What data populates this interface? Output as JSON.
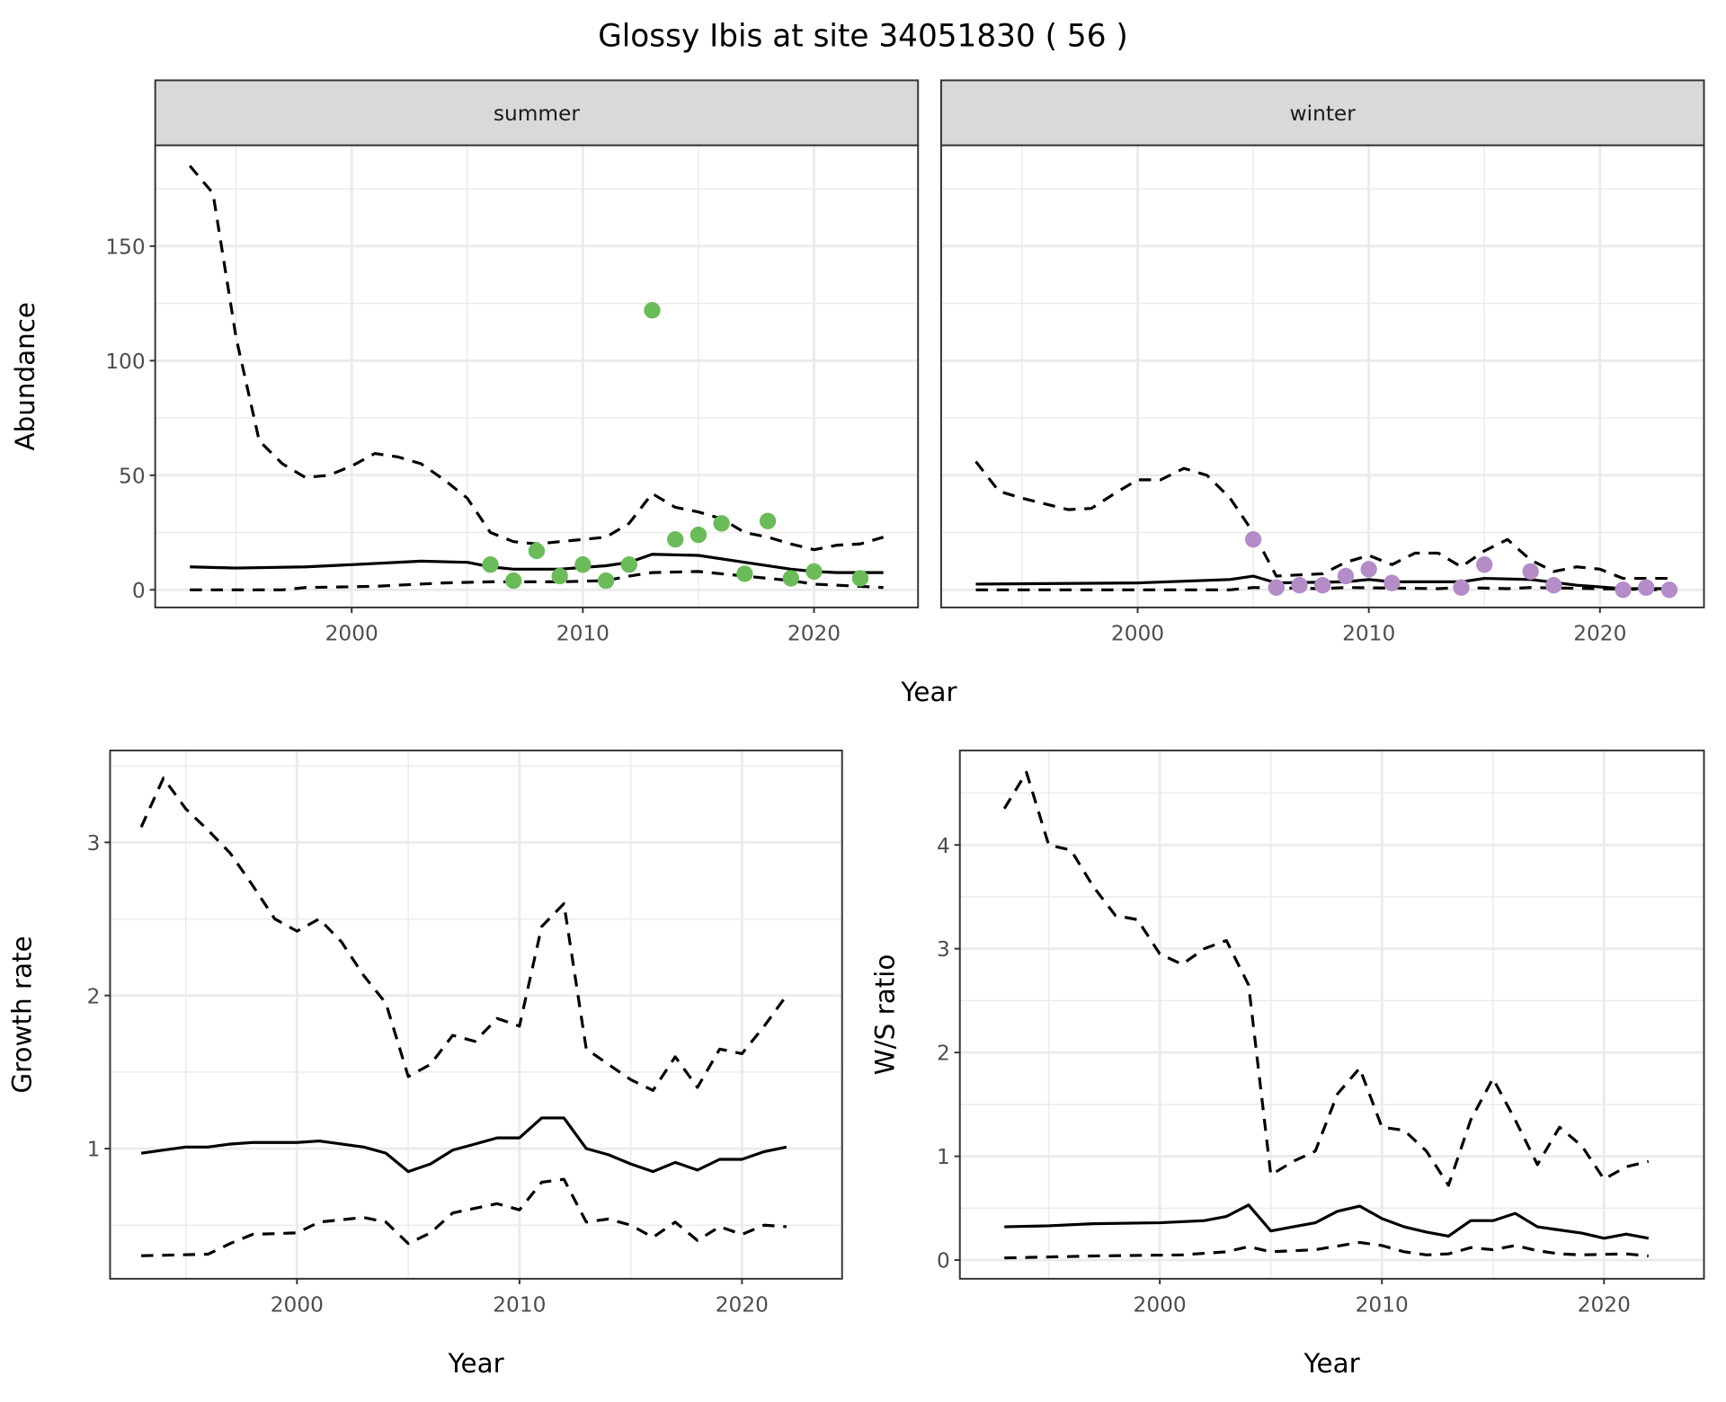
{
  "title": "Glossy Ibis at site 34051830 ( 56 )",
  "colors": {
    "summer_points": "#6BBB5A",
    "winter_points": "#B48CC8",
    "strip_bg": "#D9D9D9",
    "grid": "#EBEBEB"
  },
  "chart_data": [
    {
      "type": "line",
      "facet": "summer",
      "xlabel": "Year",
      "ylabel": "Abundance",
      "xlim": [
        1991.5,
        2024.5
      ],
      "ylim": [
        -7.7,
        194
      ],
      "xticks": [
        2000,
        2010,
        2020
      ],
      "xticks_minor": [
        1995,
        2005,
        2015
      ],
      "yticks": [
        0,
        50,
        100,
        150
      ],
      "yticks_minor": [
        25,
        75,
        125,
        175
      ],
      "points": {
        "x": [
          2006,
          2007,
          2008,
          2009,
          2010,
          2011,
          2012,
          2013,
          2014,
          2015,
          2016,
          2017,
          2018,
          2019,
          2020,
          2022
        ],
        "y": [
          11,
          4,
          17,
          6,
          11,
          4,
          11,
          122,
          22,
          24,
          29,
          7,
          30,
          5,
          8,
          5
        ]
      },
      "mean": {
        "x": [
          1993,
          1995,
          1998,
          2000,
          2003,
          2005,
          2006,
          2007,
          2009,
          2011,
          2012,
          2013,
          2015,
          2017,
          2019,
          2020,
          2021,
          2023
        ],
        "y": [
          10,
          9.5,
          10,
          11,
          12.5,
          12,
          10,
          9,
          9,
          10.5,
          12,
          15.5,
          15,
          12,
          9,
          8,
          7.5,
          7.5
        ]
      },
      "upper": {
        "x": [
          1993,
          1994,
          1995,
          1996,
          1997,
          1998,
          1999,
          2000,
          2001,
          2002,
          2003,
          2004,
          2005,
          2006,
          2007,
          2008,
          2009,
          2010,
          2011,
          2012,
          2013,
          2014,
          2015,
          2016,
          2017,
          2018,
          2019,
          2020,
          2021,
          2022,
          2023
        ],
        "y": [
          185,
          173,
          110,
          65,
          55,
          49,
          50,
          54,
          59.5,
          58,
          55,
          48,
          40,
          25,
          21,
          20,
          21,
          22,
          23,
          29,
          42,
          36,
          34,
          31,
          25,
          23,
          20,
          17.5,
          19.5,
          20,
          23
        ]
      },
      "lower": {
        "x": [
          1993,
          1997,
          1998,
          2001,
          2004,
          2006,
          2009,
          2011,
          2012,
          2013,
          2015,
          2017,
          2019,
          2020,
          2022,
          2023
        ],
        "y": [
          0,
          0,
          1,
          1.5,
          3,
          3.5,
          3.5,
          4,
          6,
          7.5,
          8,
          6,
          4,
          2.5,
          1.5,
          1
        ]
      }
    },
    {
      "type": "line",
      "facet": "winter",
      "xlabel": "Year",
      "ylabel": "Abundance",
      "xlim": [
        1991.5,
        2024.5
      ],
      "ylim": [
        -7.7,
        194
      ],
      "xticks": [
        2000,
        2010,
        2020
      ],
      "xticks_minor": [
        1995,
        2005,
        2015
      ],
      "yticks": [
        0,
        50,
        100,
        150
      ],
      "yticks_minor": [
        25,
        75,
        125,
        175
      ],
      "points": {
        "x": [
          2005,
          2006,
          2007,
          2008,
          2009,
          2010,
          2011,
          2014,
          2015,
          2017,
          2018,
          2021,
          2022,
          2023
        ],
        "y": [
          22,
          1,
          2,
          2,
          6,
          9,
          3,
          1,
          11,
          8,
          2,
          0,
          1,
          0
        ]
      },
      "mean": {
        "x": [
          1993,
          2000,
          2004,
          2005,
          2006,
          2009,
          2010,
          2011,
          2014,
          2015,
          2017,
          2019,
          2021,
          2023
        ],
        "y": [
          2.5,
          3,
          4.5,
          6,
          3,
          3.5,
          4.5,
          3.5,
          3.5,
          5,
          4.5,
          2,
          0.5,
          0.5
        ]
      },
      "upper": {
        "x": [
          1993,
          1994,
          1995,
          1997,
          1998,
          1999,
          2000,
          2001,
          2002,
          2003,
          2004,
          2005,
          2006,
          2007,
          2008,
          2009,
          2010,
          2011,
          2012,
          2013,
          2014,
          2015,
          2016,
          2017,
          2018,
          2019,
          2020,
          2021,
          2022,
          2023
        ],
        "y": [
          56,
          43,
          40,
          35,
          35.5,
          42,
          48,
          48,
          53,
          50,
          40,
          25,
          6,
          6.5,
          7,
          12,
          15,
          11,
          16,
          16,
          10,
          17,
          22,
          13,
          8,
          10,
          9,
          5,
          5,
          5
        ]
      },
      "lower": {
        "x": [
          1993,
          2004,
          2005,
          2008,
          2009,
          2013,
          2014,
          2016,
          2017,
          2023
        ],
        "y": [
          0,
          0,
          1,
          0.5,
          1,
          0.5,
          1,
          0.5,
          1,
          0
        ]
      }
    },
    {
      "type": "line",
      "xlabel": "Year",
      "ylabel": "Growth rate",
      "xlim": [
        1991.6,
        2024.5
      ],
      "ylim": [
        0.15,
        3.6
      ],
      "xticks": [
        2000,
        2010,
        2020
      ],
      "xticks_minor": [
        1995,
        2005,
        2015
      ],
      "yticks": [
        1,
        2,
        3
      ],
      "yticks_minor": [
        0.5,
        1.5,
        2.5,
        3.5
      ],
      "mean": {
        "x": [
          1993,
          1994,
          1995,
          1996,
          1997,
          1998,
          1999,
          2000,
          2001,
          2002,
          2003,
          2004,
          2005,
          2006,
          2007,
          2008,
          2009,
          2010,
          2011,
          2012,
          2013,
          2014,
          2015,
          2016,
          2017,
          2018,
          2019,
          2020,
          2021,
          2022
        ],
        "y": [
          0.97,
          0.99,
          1.01,
          1.01,
          1.03,
          1.04,
          1.04,
          1.04,
          1.05,
          1.03,
          1.01,
          0.97,
          0.85,
          0.9,
          0.99,
          1.03,
          1.07,
          1.07,
          1.2,
          1.2,
          1.0,
          0.96,
          0.9,
          0.85,
          0.91,
          0.86,
          0.93,
          0.93,
          0.98,
          1.01
        ]
      },
      "upper": {
        "x": [
          1993,
          1994,
          1995,
          1996,
          1997,
          1998,
          1999,
          2000,
          2001,
          2002,
          2003,
          2004,
          2005,
          2006,
          2007,
          2008,
          2009,
          2010,
          2011,
          2012,
          2013,
          2014,
          2015,
          2016,
          2017,
          2018,
          2019,
          2020,
          2021,
          2022
        ],
        "y": [
          3.1,
          3.42,
          3.22,
          3.08,
          2.93,
          2.72,
          2.5,
          2.42,
          2.5,
          2.35,
          2.13,
          1.95,
          1.47,
          1.55,
          1.74,
          1.7,
          1.85,
          1.8,
          2.45,
          2.6,
          1.65,
          1.55,
          1.45,
          1.38,
          1.6,
          1.4,
          1.65,
          1.62,
          1.8,
          2.0
        ]
      },
      "lower": {
        "x": [
          1993,
          1996,
          1997,
          1998,
          2000,
          2001,
          2003,
          2004,
          2005,
          2006,
          2007,
          2009,
          2010,
          2011,
          2012,
          2013,
          2014,
          2015,
          2016,
          2017,
          2018,
          2019,
          2020,
          2021,
          2022
        ],
        "y": [
          0.3,
          0.31,
          0.38,
          0.44,
          0.45,
          0.52,
          0.55,
          0.52,
          0.38,
          0.45,
          0.58,
          0.64,
          0.6,
          0.78,
          0.8,
          0.52,
          0.54,
          0.5,
          0.42,
          0.52,
          0.4,
          0.49,
          0.44,
          0.5,
          0.49
        ]
      }
    },
    {
      "type": "line",
      "xlabel": "Year",
      "ylabel": "W/S ratio",
      "xlim": [
        1991,
        2024.5
      ],
      "ylim": [
        -0.18,
        4.91
      ],
      "xticks": [
        2000,
        2010,
        2020
      ],
      "xticks_minor": [
        1995,
        2005,
        2015
      ],
      "yticks": [
        0,
        1,
        2,
        3,
        4
      ],
      "yticks_minor": [
        0.5,
        1.5,
        2.5,
        3.5,
        4.5
      ],
      "mean": {
        "x": [
          1993,
          1995,
          1997,
          2000,
          2002,
          2003,
          2004,
          2005,
          2006,
          2007,
          2008,
          2009,
          2010,
          2011,
          2012,
          2013,
          2014,
          2015,
          2016,
          2017,
          2018,
          2019,
          2020,
          2021,
          2022
        ],
        "y": [
          0.32,
          0.33,
          0.35,
          0.36,
          0.38,
          0.42,
          0.53,
          0.28,
          0.32,
          0.36,
          0.47,
          0.52,
          0.4,
          0.32,
          0.27,
          0.23,
          0.38,
          0.38,
          0.45,
          0.32,
          0.29,
          0.26,
          0.21,
          0.25,
          0.21
        ]
      },
      "upper": {
        "x": [
          1993,
          1994,
          1995,
          1996,
          1997,
          1998,
          1999,
          2000,
          2001,
          2002,
          2003,
          2004,
          2005,
          2006,
          2007,
          2008,
          2009,
          2010,
          2011,
          2012,
          2013,
          2014,
          2015,
          2016,
          2017,
          2018,
          2019,
          2020,
          2021,
          2022
        ],
        "y": [
          4.35,
          4.7,
          4.0,
          3.95,
          3.6,
          3.32,
          3.28,
          2.95,
          2.85,
          3.0,
          3.08,
          2.65,
          0.82,
          0.95,
          1.05,
          1.6,
          1.85,
          1.28,
          1.25,
          1.05,
          0.72,
          1.35,
          1.75,
          1.35,
          0.92,
          1.28,
          1.1,
          0.78,
          0.9,
          0.95
        ]
      },
      "lower": {
        "x": [
          1993,
          1997,
          2001,
          2003,
          2004,
          2005,
          2007,
          2009,
          2010,
          2011,
          2012,
          2013,
          2014,
          2015,
          2016,
          2017,
          2018,
          2019,
          2021,
          2022
        ],
        "y": [
          0.02,
          0.04,
          0.05,
          0.08,
          0.13,
          0.08,
          0.1,
          0.17,
          0.14,
          0.08,
          0.05,
          0.06,
          0.12,
          0.1,
          0.14,
          0.09,
          0.06,
          0.05,
          0.06,
          0.04
        ]
      }
    }
  ]
}
